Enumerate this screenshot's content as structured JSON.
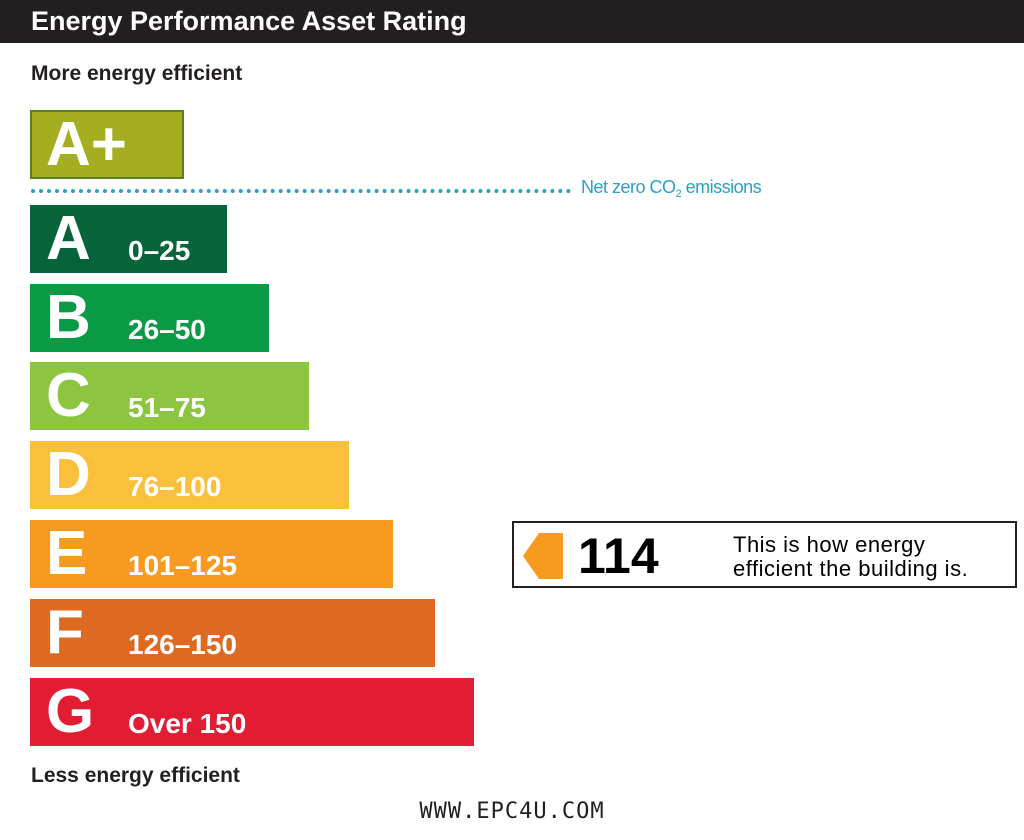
{
  "title": "Energy Performance Asset Rating",
  "top_caption": "More energy efficient",
  "bottom_caption": "Less energy efficient",
  "net_zero": {
    "label_prefix": "Net zero CO",
    "label_sub": "2",
    "label_suffix": " emissions",
    "color": "#2aa0c9"
  },
  "bands": [
    {
      "letter": "A+",
      "range": "",
      "color": "#a5ad20"
    },
    {
      "letter": "A",
      "range": "0–25",
      "color": "#07643a"
    },
    {
      "letter": "B",
      "range": "26–50",
      "color": "#0a9a45"
    },
    {
      "letter": "C",
      "range": "51–75",
      "color": "#8dc540"
    },
    {
      "letter": "D",
      "range": "76–100",
      "color": "#fbc03b"
    },
    {
      "letter": "E",
      "range": "101–125",
      "color": "#f69b20"
    },
    {
      "letter": "F",
      "range": "126–150",
      "color": "#dd6a20"
    },
    {
      "letter": "G",
      "range": "Over 150",
      "color": "#e21d33"
    }
  ],
  "rating": {
    "value": "114",
    "band": "E",
    "text_line1": "This is how energy",
    "text_line2": "efficient the building is.",
    "arrow_color": "#f69b20"
  },
  "footer": "WWW.EPC4U.COM"
}
